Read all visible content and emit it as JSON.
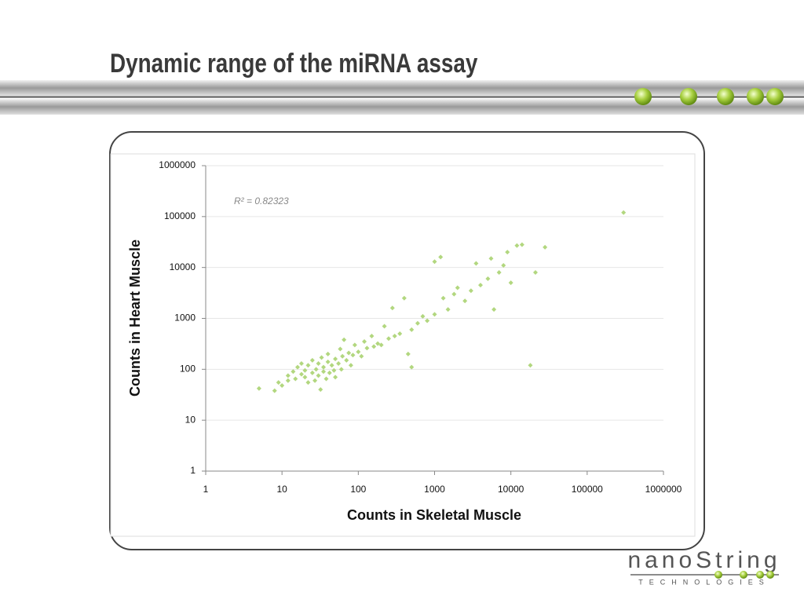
{
  "slide": {
    "title": "Dynamic range of the miRNA assay"
  },
  "logo": {
    "name": "nanoString",
    "tagline": "TECHNOLOGIES"
  },
  "chart_data": {
    "type": "scatter",
    "x_label": "Counts in Skeletal Muscle",
    "y_label": "Counts in Heart Muscle",
    "annotation": "R² = 0.82323",
    "color": "#b2d77f",
    "log_x": true,
    "log_y": true,
    "grid": true,
    "xlim": [
      1,
      1000000
    ],
    "ylim": [
      1,
      1000000
    ],
    "xticks": [
      1,
      10,
      100,
      1000,
      10000,
      100000,
      1000000
    ],
    "yticks": [
      1,
      10,
      100,
      1000,
      10000,
      100000,
      1000000
    ],
    "x": [
      5,
      8,
      9,
      10,
      12,
      12,
      14,
      15,
      16,
      18,
      18,
      20,
      20,
      22,
      22,
      25,
      25,
      27,
      28,
      30,
      30,
      32,
      33,
      35,
      35,
      38,
      40,
      40,
      42,
      45,
      48,
      50,
      50,
      55,
      58,
      60,
      62,
      65,
      70,
      75,
      80,
      85,
      90,
      100,
      110,
      120,
      130,
      150,
      160,
      180,
      200,
      220,
      250,
      280,
      300,
      350,
      400,
      450,
      500,
      500,
      600,
      700,
      800,
      1000,
      1000,
      1200,
      1300,
      1500,
      1800,
      2000,
      2500,
      3000,
      3500,
      4000,
      5000,
      5500,
      6000,
      7000,
      8000,
      9000,
      10000,
      12000,
      14000,
      18000,
      21000,
      28000,
      300000
    ],
    "values": [
      42,
      38,
      55,
      48,
      60,
      75,
      90,
      65,
      110,
      80,
      130,
      70,
      95,
      120,
      55,
      85,
      150,
      60,
      100,
      75,
      130,
      40,
      170,
      90,
      110,
      65,
      140,
      200,
      85,
      120,
      95,
      160,
      70,
      130,
      250,
      100,
      180,
      380,
      150,
      210,
      120,
      190,
      300,
      220,
      180,
      350,
      260,
      450,
      280,
      320,
      300,
      700,
      400,
      1600,
      450,
      500,
      2500,
      200,
      600,
      110,
      800,
      1100,
      900,
      1200,
      13000,
      16000,
      2500,
      1500,
      3000,
      4000,
      2200,
      3500,
      12000,
      4500,
      6000,
      15000,
      1500,
      8000,
      11000,
      20000,
      5000,
      27000,
      28000,
      120,
      8000,
      25000,
      120000
    ]
  }
}
